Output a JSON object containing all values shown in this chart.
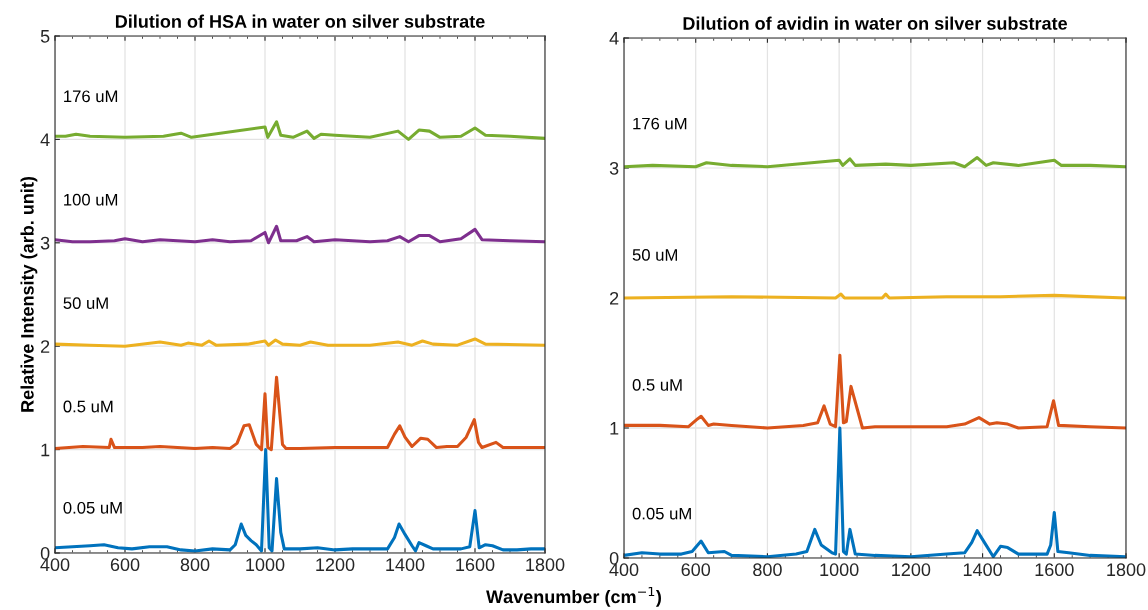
{
  "chart_data": [
    {
      "type": "line",
      "title": "Dilution of HSA in water on silver substrate",
      "xlabel": "Wavenumber (cm$^{−1}$)",
      "ylabel": "Relative Intensity (arb. unit)",
      "xlim": [
        400,
        1800
      ],
      "xticks": [
        400,
        600,
        800,
        1000,
        1200,
        1400,
        1600,
        1800
      ],
      "ylim": [
        0,
        5
      ],
      "yticks": [
        0,
        1,
        2,
        3,
        4,
        5
      ],
      "grid": true,
      "legend": false,
      "line_style": "solid",
      "marker": "none",
      "series": [
        {
          "name": "0.05 uM",
          "color": "#0072bd",
          "x": [
            400,
            450,
            500,
            540,
            580,
            620,
            670,
            720,
            760,
            800,
            850,
            900,
            915,
            932,
            945,
            960,
            975,
            990,
            1002,
            1012,
            1020,
            1033,
            1045,
            1055,
            1100,
            1150,
            1200,
            1250,
            1300,
            1350,
            1370,
            1383,
            1400,
            1420,
            1430,
            1440,
            1460,
            1480,
            1520,
            1560,
            1585,
            1600,
            1612,
            1630,
            1650,
            1680,
            1720,
            1760,
            1800
          ],
          "values": [
            0.05,
            0.06,
            0.07,
            0.08,
            0.05,
            0.04,
            0.06,
            0.06,
            0.03,
            0.02,
            0.04,
            0.03,
            0.08,
            0.28,
            0.17,
            0.12,
            0.08,
            0.02,
            1.0,
            0.05,
            0.02,
            0.72,
            0.2,
            0.04,
            0.04,
            0.05,
            0.03,
            0.04,
            0.04,
            0.04,
            0.15,
            0.28,
            0.18,
            0.07,
            0.02,
            0.1,
            0.07,
            0.04,
            0.04,
            0.04,
            0.06,
            0.41,
            0.05,
            0.08,
            0.07,
            0.03,
            0.03,
            0.04,
            0.04
          ]
        },
        {
          "name": "0.5 uM",
          "color": "#d95319",
          "x": [
            400,
            480,
            555,
            560,
            570,
            650,
            700,
            800,
            850,
            900,
            920,
            940,
            955,
            975,
            990,
            1000,
            1008,
            1018,
            1033,
            1050,
            1060,
            1100,
            1200,
            1300,
            1350,
            1370,
            1385,
            1400,
            1420,
            1445,
            1465,
            1490,
            1520,
            1550,
            1575,
            1598,
            1610,
            1620,
            1660,
            1680,
            1750,
            1800
          ],
          "values": [
            1.01,
            1.03,
            1.02,
            1.1,
            1.02,
            1.02,
            1.03,
            1.01,
            1.02,
            1.01,
            1.06,
            1.23,
            1.24,
            1.05,
            1.0,
            1.54,
            1.02,
            1.0,
            1.7,
            1.05,
            1.01,
            1.01,
            1.02,
            1.02,
            1.02,
            1.15,
            1.23,
            1.12,
            1.03,
            1.11,
            1.1,
            1.02,
            1.03,
            1.03,
            1.12,
            1.29,
            1.07,
            1.02,
            1.07,
            1.02,
            1.02,
            1.02
          ]
        },
        {
          "name": "50 uM",
          "color": "#edb120",
          "x": [
            400,
            500,
            600,
            700,
            760,
            780,
            820,
            840,
            860,
            950,
            1000,
            1010,
            1030,
            1050,
            1100,
            1130,
            1180,
            1300,
            1380,
            1420,
            1450,
            1480,
            1550,
            1600,
            1630,
            1800
          ],
          "values": [
            2.02,
            2.01,
            2.0,
            2.04,
            2.01,
            2.03,
            2.01,
            2.05,
            2.01,
            2.02,
            2.05,
            2.01,
            2.06,
            2.02,
            2.01,
            2.04,
            2.01,
            2.01,
            2.04,
            2.01,
            2.05,
            2.02,
            2.01,
            2.07,
            2.02,
            2.01
          ]
        },
        {
          "name": "100 uM",
          "color": "#7e2f8e",
          "x": [
            400,
            450,
            500,
            570,
            600,
            650,
            700,
            800,
            850,
            900,
            960,
            1000,
            1010,
            1033,
            1045,
            1090,
            1120,
            1140,
            1200,
            1300,
            1350,
            1385,
            1410,
            1440,
            1470,
            1500,
            1560,
            1600,
            1620,
            1700,
            1800
          ],
          "values": [
            3.03,
            3.01,
            3.01,
            3.02,
            3.04,
            3.01,
            3.03,
            3.01,
            3.03,
            3.01,
            3.02,
            3.1,
            3.0,
            3.16,
            3.02,
            3.02,
            3.06,
            3.01,
            3.03,
            3.01,
            3.02,
            3.06,
            3.01,
            3.07,
            3.07,
            3.01,
            3.04,
            3.13,
            3.03,
            3.02,
            3.01
          ]
        },
        {
          "name": "176 uM",
          "color": "#77ac30",
          "x": [
            400,
            430,
            460,
            500,
            600,
            710,
            760,
            790,
            1000,
            1008,
            1033,
            1045,
            1080,
            1120,
            1140,
            1160,
            1200,
            1300,
            1380,
            1410,
            1440,
            1470,
            1500,
            1560,
            1600,
            1630,
            1700,
            1800
          ],
          "values": [
            4.03,
            4.03,
            4.05,
            4.03,
            4.02,
            4.03,
            4.06,
            4.02,
            4.12,
            4.02,
            4.17,
            4.04,
            4.02,
            4.08,
            4.01,
            4.05,
            4.04,
            4.02,
            4.08,
            4.0,
            4.09,
            4.08,
            4.02,
            4.03,
            4.11,
            4.04,
            4.03,
            4.01
          ]
        }
      ]
    },
    {
      "type": "line",
      "title": "Dilution of avidin in water on silver substrate",
      "xlim": [
        400,
        1800
      ],
      "xticks": [
        400,
        600,
        800,
        1000,
        1200,
        1400,
        1600,
        1800
      ],
      "ylim": [
        0,
        4
      ],
      "yticks": [
        0,
        1,
        2,
        3,
        4
      ],
      "grid": true,
      "legend": false,
      "line_style": "solid",
      "marker": "none",
      "series": [
        {
          "name": "0.05 uM",
          "color": "#0072bd",
          "x": [
            400,
            450,
            500,
            560,
            590,
            615,
            635,
            680,
            700,
            800,
            880,
            910,
            932,
            950,
            980,
            990,
            1002,
            1012,
            1020,
            1030,
            1045,
            1100,
            1200,
            1300,
            1350,
            1370,
            1385,
            1405,
            1430,
            1450,
            1470,
            1500,
            1580,
            1590,
            1600,
            1610,
            1640,
            1700,
            1800
          ],
          "values": [
            0.02,
            0.04,
            0.03,
            0.03,
            0.05,
            0.13,
            0.04,
            0.05,
            0.02,
            0.01,
            0.03,
            0.05,
            0.22,
            0.1,
            0.04,
            0.03,
            1.0,
            0.05,
            0.03,
            0.22,
            0.03,
            0.02,
            0.01,
            0.03,
            0.04,
            0.12,
            0.21,
            0.12,
            0.01,
            0.09,
            0.08,
            0.03,
            0.03,
            0.1,
            0.35,
            0.05,
            0.04,
            0.02,
            0.01
          ]
        },
        {
          "name": "0.5 uM",
          "color": "#d95319",
          "x": [
            400,
            500,
            580,
            605,
            615,
            635,
            650,
            700,
            800,
            900,
            940,
            958,
            975,
            990,
            1002,
            1012,
            1020,
            1033,
            1050,
            1065,
            1100,
            1200,
            1300,
            1350,
            1390,
            1420,
            1440,
            1470,
            1500,
            1580,
            1598,
            1612,
            1700,
            1800
          ],
          "values": [
            1.02,
            1.02,
            1.01,
            1.07,
            1.09,
            1.02,
            1.03,
            1.02,
            1.0,
            1.02,
            1.04,
            1.17,
            1.03,
            1.01,
            1.56,
            1.04,
            1.05,
            1.32,
            1.15,
            1.0,
            1.01,
            1.01,
            1.01,
            1.03,
            1.08,
            1.03,
            1.04,
            1.03,
            1.0,
            1.01,
            1.21,
            1.02,
            1.01,
            1.0
          ]
        },
        {
          "name": "50 uM",
          "color": "#edb120",
          "x": [
            400,
            700,
            990,
            1005,
            1015,
            1120,
            1130,
            1140,
            1300,
            1450,
            1600,
            1800
          ],
          "values": [
            2.0,
            2.01,
            2.0,
            2.03,
            2.0,
            2.0,
            2.03,
            2.0,
            2.01,
            2.01,
            2.02,
            2.0
          ]
        },
        {
          "name": "176 uM",
          "color": "#77ac30",
          "x": [
            400,
            480,
            600,
            630,
            700,
            800,
            1000,
            1010,
            1030,
            1045,
            1130,
            1200,
            1320,
            1350,
            1385,
            1410,
            1430,
            1500,
            1600,
            1620,
            1700,
            1800
          ],
          "values": [
            3.01,
            3.02,
            3.01,
            3.04,
            3.02,
            3.01,
            3.06,
            3.02,
            3.07,
            3.02,
            3.03,
            3.02,
            3.04,
            3.01,
            3.08,
            3.02,
            3.04,
            3.02,
            3.06,
            3.02,
            3.02,
            3.01
          ]
        }
      ]
    }
  ]
}
